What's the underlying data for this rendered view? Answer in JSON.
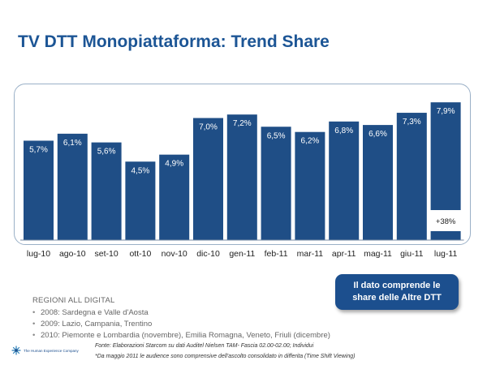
{
  "title": "TV DTT Monopiattaforma: Trend Share",
  "chart_data": {
    "type": "bar",
    "categories": [
      "lug-10",
      "ago-10",
      "set-10",
      "ott-10",
      "nov-10",
      "dic-10",
      "gen-11",
      "feb-11",
      "mar-11",
      "apr-11",
      "mag-11",
      "giu-11",
      "lug-11"
    ],
    "values": [
      5.7,
      6.1,
      5.6,
      4.5,
      4.9,
      7.0,
      7.2,
      6.5,
      6.2,
      6.8,
      6.6,
      7.3,
      7.9
    ],
    "labels": [
      "5,7%",
      "6,1%",
      "5,6%",
      "4,5%",
      "4,9%",
      "7,0%",
      "7,2%",
      "6,5%",
      "6,2%",
      "6,8%",
      "6,6%",
      "7,3%",
      "7,9%"
    ],
    "annotation": "+38%",
    "bar_color": "#1f4e86",
    "ylim": [
      0,
      8.5
    ],
    "grid": false
  },
  "callout": {
    "line1": "Il dato comprende le",
    "line2": "share delle Altre DTT"
  },
  "regions": {
    "heading": "REGIONI ALL DIGITAL",
    "items": [
      "2008: Sardegna e Valle d'Aosta",
      "2009: Lazio, Campania, Trentino",
      "2010: Piemonte e Lombardia (novembre), Emilia Romagna, Veneto, Friuli (dicembre)"
    ]
  },
  "footnotes": {
    "source": "Fonte: Elaborazioni Starcom su dati Auditel Nielsen TAM- Fascia 02.00-02.00; Individui",
    "note": "*Da maggio 2011 le audience sono comprensive dell'ascolto consolidato in differita (Time Shift Viewing)"
  },
  "logo": {
    "text": "The Human Experience Company",
    "icon": "starburst-logo-icon"
  }
}
